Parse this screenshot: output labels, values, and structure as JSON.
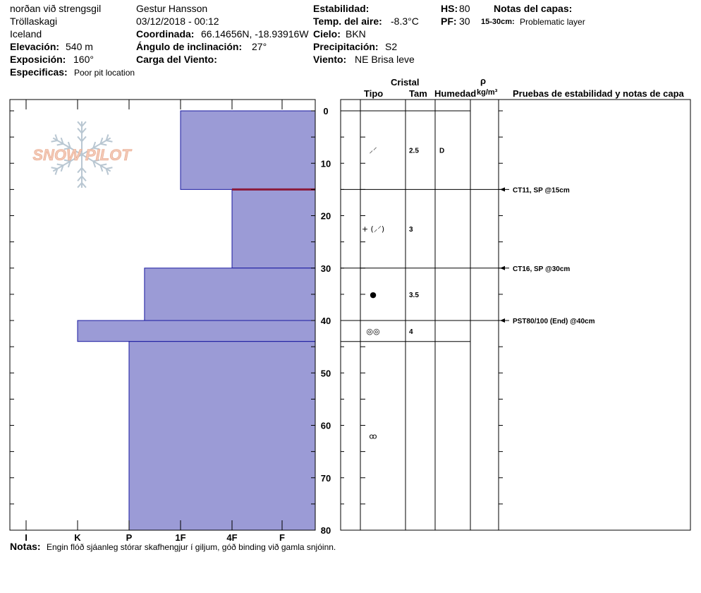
{
  "header": {
    "site": "norðan við strengsgil",
    "region": "Tröllaskagi",
    "country": "Iceland",
    "elevation_label": "Elevación:",
    "elevation_value": "540 m",
    "aspect_label": "Exposición:",
    "aspect_value": "160°",
    "specifics_label": "Especificas:",
    "specifics_value": "Poor pit location",
    "observer": "Gestur Hansson",
    "datetime": "03/12/2018 - 00:12",
    "coord_label": "Coordinada:",
    "coord_value": "66.14656N, -18.93916W",
    "slope_label": "Ángulo de inclinación:",
    "slope_value": "27°",
    "wind_load_label": "Carga del Viento:",
    "wind_load_value": "",
    "stability_label": "Estabilidad:",
    "stability_value": "",
    "air_temp_label": "Temp. del aire:",
    "air_temp_value": "-8.3°C",
    "sky_label": "Cielo:",
    "sky_value": "BKN",
    "precip_label": "Precipitación:",
    "precip_value": "S2",
    "wind_label": "Viento:",
    "wind_value": "NE Brisa leve",
    "hs_label": "HS:",
    "hs_value": "80",
    "pf_label": "PF:",
    "pf_value": "30",
    "layer_notes_label": "Notas del capas:",
    "layer_note_range": "15-30cm:",
    "layer_note_text": "Problematic layer"
  },
  "logo": {
    "text": "SNOW PILOT"
  },
  "columns": {
    "crystal": "Cristal",
    "type": "Tipo",
    "size": "Tam",
    "moisture": "Humedad",
    "rho": "ρ",
    "density_unit": "kg/m³",
    "tests": "Pruebas de estabilidad y notas de capa"
  },
  "notes": {
    "label": "Notas:",
    "text": "Engin flóð sjáanleg  stórar skafhengjur í giljum, góð binding við gamla snjóinn."
  },
  "colors": {
    "hardness_fill": "#9b9bd6",
    "hardness_stroke": "#1a1aa0",
    "problem_layer": "#8b1a3a",
    "logo_text": "#f3c9b6",
    "logo_flake": "#b9c7d2"
  },
  "chart_data": {
    "type": "bar",
    "orientation": "horizontal",
    "depth_axis": {
      "min": 0,
      "max": 80,
      "ticks": [
        0,
        10,
        20,
        30,
        40,
        50,
        60,
        70,
        80
      ]
    },
    "hardness_axis": {
      "categories": [
        "I",
        "K",
        "P",
        "1F",
        "4F",
        "F"
      ]
    },
    "hardness_layers": [
      {
        "top": 0,
        "bottom": 15,
        "hardness": 3.0
      },
      {
        "top": 15,
        "bottom": 30,
        "hardness": 2.0
      },
      {
        "top": 30,
        "bottom": 40,
        "hardness": 3.7
      },
      {
        "top": 40,
        "bottom": 44,
        "hardness": 5.0
      },
      {
        "top": 44,
        "bottom": 80,
        "hardness": 4.0
      }
    ],
    "problem_layer_depth": 15,
    "layer_boundaries": [
      0,
      15,
      30,
      40,
      44
    ],
    "crystals": [
      {
        "depth": 7.5,
        "type": "⸝⸍",
        "size": "2.5",
        "moisture": "D"
      },
      {
        "depth": 22.5,
        "type": "+ (⸝⸍)",
        "size": "3",
        "moisture": ""
      },
      {
        "depth": 35,
        "type": "●",
        "size": "3.5",
        "moisture": ""
      },
      {
        "depth": 42,
        "type": "◎◎",
        "size": "4",
        "moisture": ""
      },
      {
        "depth": 62,
        "type": "ꝏ",
        "size": "",
        "moisture": ""
      }
    ],
    "tests": [
      {
        "depth": 15,
        "label": "CT11, SP @15cm"
      },
      {
        "depth": 30,
        "label": "CT16, SP @30cm"
      },
      {
        "depth": 40,
        "label": "PST80/100 (End) @40cm"
      }
    ]
  }
}
